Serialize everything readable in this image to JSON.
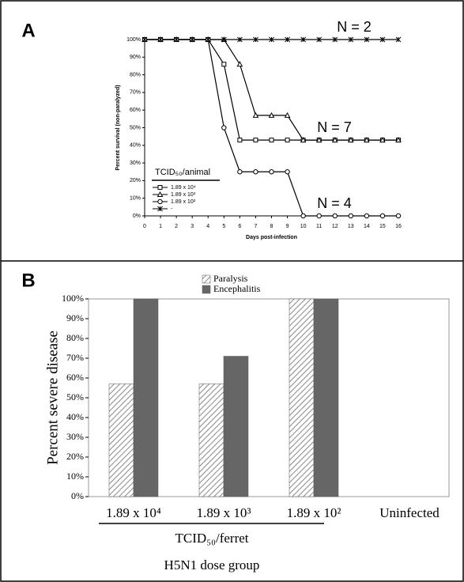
{
  "chart_data": [
    {
      "type": "line",
      "panel_label": "A",
      "y_label": "Percent survival (non-paralyzed)",
      "x_label": "Days post-infection",
      "legend_title": "TCID₅₀/animal",
      "x": [
        0,
        1,
        2,
        3,
        4,
        5,
        6,
        7,
        8,
        9,
        10,
        11,
        12,
        13,
        14,
        15,
        16
      ],
      "xlim": [
        0,
        16
      ],
      "xticks": [
        0,
        1,
        2,
        3,
        4,
        5,
        6,
        7,
        8,
        9,
        10,
        11,
        12,
        13,
        14,
        15,
        16
      ],
      "ylim": [
        0,
        100
      ],
      "yticks": [
        {
          "value": 0,
          "label": "0%"
        },
        {
          "value": 10,
          "label": "10%"
        },
        {
          "value": 20,
          "label": "20%"
        },
        {
          "value": 30,
          "label": "30%"
        },
        {
          "value": 40,
          "label": "40%"
        },
        {
          "value": 50,
          "label": "50%"
        },
        {
          "value": 60,
          "label": "60%"
        },
        {
          "value": 70,
          "label": "70%"
        },
        {
          "value": 80,
          "label": "80%"
        },
        {
          "value": 90,
          "label": "90%"
        },
        {
          "value": 100,
          "label": "100%"
        }
      ],
      "series": [
        {
          "name": "1.89 x 10⁴",
          "color": "#000000",
          "marker": "square",
          "values": [
            100,
            100,
            100,
            100,
            100,
            86,
            43,
            43,
            43,
            43,
            43,
            43,
            43,
            43,
            43,
            43,
            43
          ]
        },
        {
          "name": "1.89 x 10³",
          "color": "#000000",
          "marker": "triangle",
          "values": [
            100,
            100,
            100,
            100,
            100,
            100,
            86,
            57,
            57,
            57,
            43,
            43,
            43,
            43,
            43,
            43,
            43
          ]
        },
        {
          "name": "1.89 x 10²",
          "color": "#000000",
          "marker": "circle",
          "values": [
            100,
            100,
            100,
            100,
            100,
            50,
            25,
            25,
            25,
            25,
            0,
            0,
            0,
            0,
            0,
            0,
            0
          ]
        },
        {
          "name": "-",
          "color": "#000000",
          "marker": "star",
          "values": [
            100,
            100,
            100,
            100,
            100,
            100,
            100,
            100,
            100,
            100,
            100,
            100,
            100,
            100,
            100,
            100,
            100
          ]
        }
      ],
      "annotations": [
        "N = 2",
        "N = 7",
        "N = 4"
      ]
    },
    {
      "type": "bar",
      "panel_label": "B",
      "y_label": "Percent severe disease",
      "categories": [
        "1.89 x 10⁴",
        "1.89 x 10³",
        "1.89 x 10²",
        "Uninfected"
      ],
      "group_label": "TCID₅₀/ferret",
      "x_label": "H5N1 dose group",
      "ylim": [
        0,
        100
      ],
      "yticks": [
        {
          "value": 0,
          "label": "0%"
        },
        {
          "value": 10,
          "label": "10%"
        },
        {
          "value": 20,
          "label": "20%"
        },
        {
          "value": 30,
          "label": "30%"
        },
        {
          "value": 40,
          "label": "40%"
        },
        {
          "value": 50,
          "label": "50%"
        },
        {
          "value": 60,
          "label": "60%"
        },
        {
          "value": 70,
          "label": "70%"
        },
        {
          "value": 80,
          "label": "80%"
        },
        {
          "value": 90,
          "label": "90%"
        },
        {
          "value": 100,
          "label": "100%"
        }
      ],
      "series": [
        {
          "name": "Paralysis",
          "color": "#d9d9d9",
          "pattern": "hatch",
          "values": [
            57,
            57,
            100,
            0
          ]
        },
        {
          "name": "Encephalitis",
          "color": "#666666",
          "values": [
            100,
            71,
            100,
            0
          ]
        }
      ]
    }
  ]
}
